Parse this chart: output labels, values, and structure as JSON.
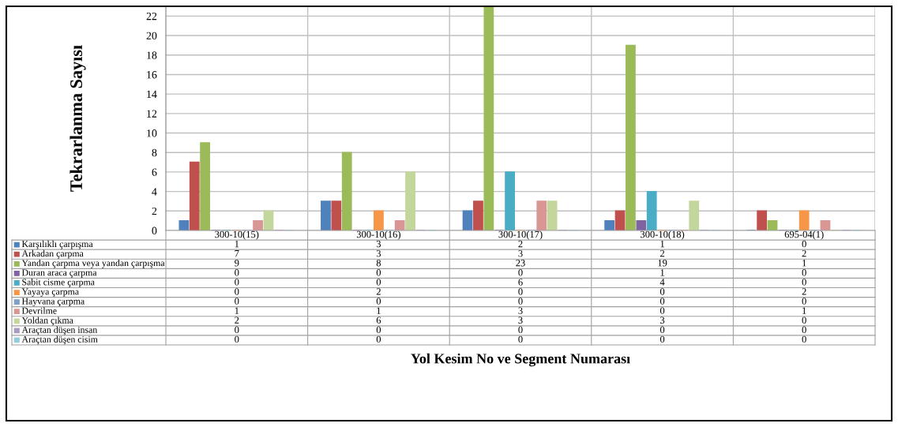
{
  "chart_data": {
    "type": "bar",
    "ylabel": "Tekrarlanma Sayısı",
    "annotations": [
      "Yol Kesim No ve Segment Numarası"
    ],
    "categories": [
      "300-10(15)",
      "300-10(16)",
      "300-10(17)",
      "300-10(18)",
      "695-04(1)"
    ],
    "series": [
      {
        "name": "Karşılıklı çarpışma",
        "color": "#4f81bd",
        "values": [
          1,
          3,
          2,
          1,
          0
        ]
      },
      {
        "name": "Arkadan çarpma",
        "color": "#c0504d",
        "values": [
          7,
          3,
          3,
          2,
          2
        ]
      },
      {
        "name": "Yandan çarpma veya yandan çarpışma",
        "color": "#9bbb59",
        "values": [
          9,
          8,
          23,
          19,
          1
        ]
      },
      {
        "name": "Duran araca çarpma",
        "color": "#8064a2",
        "values": [
          0,
          0,
          0,
          1,
          0
        ]
      },
      {
        "name": "Sabit cisme çarpma",
        "color": "#4bacc6",
        "values": [
          0,
          0,
          6,
          4,
          0
        ]
      },
      {
        "name": "Yayaya çarpma",
        "color": "#f79646",
        "values": [
          0,
          2,
          0,
          0,
          2
        ]
      },
      {
        "name": "Hayvana çarpma",
        "color": "#7f9fc9",
        "values": [
          0,
          0,
          0,
          0,
          0
        ]
      },
      {
        "name": "Devrilme",
        "color": "#d99694",
        "values": [
          1,
          1,
          3,
          0,
          1
        ]
      },
      {
        "name": "Yoldan çıkma",
        "color": "#c3d69b",
        "values": [
          2,
          6,
          3,
          3,
          0
        ]
      },
      {
        "name": "Araçtan düşen insan",
        "color": "#a99bbd",
        "values": [
          0,
          0,
          0,
          0,
          0
        ]
      },
      {
        "name": "Araçtan düşen cisim",
        "color": "#93cddd",
        "values": [
          0,
          0,
          0,
          0,
          0
        ]
      }
    ],
    "ylim": [
      0,
      23
    ],
    "yticks": [
      0,
      2,
      4,
      6,
      8,
      10,
      12,
      14,
      16,
      18,
      20,
      22
    ],
    "grid": "y",
    "data_labels": true,
    "legend": "bottom left"
  }
}
